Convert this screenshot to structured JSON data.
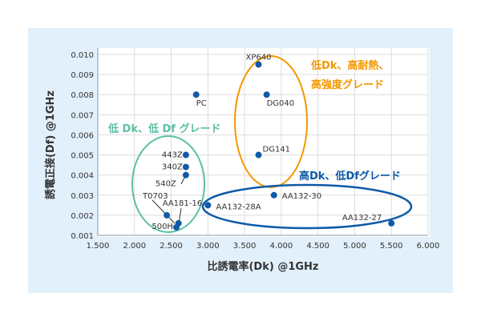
{
  "chart_data": {
    "type": "scatter",
    "xlabel": "比誘電率(Dk) @1GHz",
    "ylabel": "誘電正接(Df) @1GHz",
    "xlim": [
      1.5,
      6.0
    ],
    "ylim": [
      0.001,
      0.01
    ],
    "xticks": [
      "1.500",
      "2.000",
      "2.500",
      "3.000",
      "3.500",
      "4.000",
      "4.500",
      "5.000",
      "5.500",
      "6.000"
    ],
    "yticks": [
      "0.001",
      "0.002",
      "0.003",
      "0.004",
      "0.005",
      "0.006",
      "0.007",
      "0.008",
      "0.009",
      "0.010"
    ],
    "grid": true,
    "points": [
      {
        "label": "XP640",
        "x": 3.69,
        "y": 0.0095
      },
      {
        "label": "PC",
        "x": 2.84,
        "y": 0.008
      },
      {
        "label": "DG040",
        "x": 3.8,
        "y": 0.008
      },
      {
        "label": "DG141",
        "x": 3.69,
        "y": 0.005
      },
      {
        "label": "443Z",
        "x": 2.7,
        "y": 0.005
      },
      {
        "label": "340Z",
        "x": 2.7,
        "y": 0.0044
      },
      {
        "label": "540Z",
        "x": 2.7,
        "y": 0.004
      },
      {
        "label": "T0703",
        "x": 2.44,
        "y": 0.002
      },
      {
        "label": "AA181-16",
        "x": 2.6,
        "y": 0.0016
      },
      {
        "label": "500H",
        "x": 2.57,
        "y": 0.0014
      },
      {
        "label": "AA132-28A",
        "x": 3.0,
        "y": 0.0025
      },
      {
        "label": "AA132-30",
        "x": 3.9,
        "y": 0.003
      },
      {
        "label": "AA132-27",
        "x": 5.5,
        "y": 0.0016
      }
    ],
    "annotations": [
      {
        "text1": "低Dk、高耐熱、",
        "text2": "高強度グレード",
        "color": "#f39800"
      },
      {
        "text1": "低 Dk、低 Df グレード",
        "color": "#5bbfa6"
      },
      {
        "text1": "高Dk、低Dfグレード",
        "color": "#0e5aa7"
      }
    ],
    "point_color": "#0e5aa7"
  }
}
